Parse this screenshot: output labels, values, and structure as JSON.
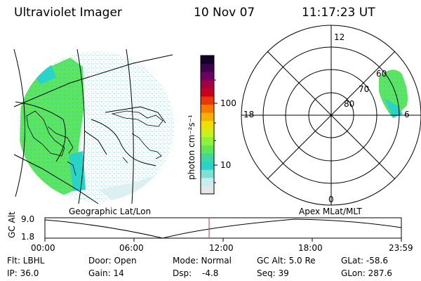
{
  "header": {
    "instrument": "Ultraviolet Imager",
    "date": "10 Nov 07",
    "time": "11:17:23 UT"
  },
  "colorbar": {
    "unit_label": "photon cm⁻²s⁻¹",
    "ticks": [
      {
        "label": "100",
        "value": 100
      },
      {
        "label": "10",
        "value": 10
      }
    ],
    "scale": "log",
    "colors": [
      "#e6e6e6",
      "#c8ecf0",
      "#7fe0d8",
      "#29d3c8",
      "#3fd6a0",
      "#5ee65a",
      "#8cf23a",
      "#c8f01c",
      "#f0e000",
      "#f8b000",
      "#f87800",
      "#e63a00",
      "#c8001e",
      "#a00046",
      "#700060",
      "#400050",
      "#15002a"
    ]
  },
  "left_map": {
    "label": "Geographic Lat/Lon"
  },
  "polar_plot": {
    "label": "Apex MLat/MLT",
    "mlt_labels": {
      "top": "12",
      "bottom": "0",
      "left": "18",
      "right": "6"
    },
    "lat_labels": [
      "60",
      "70",
      "80"
    ]
  },
  "altitude_plot": {
    "y_label": "GC Alt",
    "y_ticks": [
      "9.0",
      "1.8"
    ],
    "x_ticks": [
      "00:00",
      "06:00",
      "12:00",
      "18:00",
      "23:59"
    ],
    "current_time_marker": "11:17"
  },
  "status": {
    "row1": {
      "filter": "Flt: LBHL",
      "door": "Door: Open",
      "mode": "Mode: Normal",
      "gc_alt": "GC Alt: 5.0 Re",
      "glat": "GLat: -58.6"
    },
    "row2": {
      "ip": "IP: 36.0",
      "gain": "Gain: 14",
      "dsp_label": "Dsp:",
      "dsp_value": "-4.8",
      "seq": "Seq: 39",
      "glon": "GLon: 287.6"
    }
  },
  "colors": {
    "aurora_green": "#5ee65a",
    "aurora_cyan": "#29d3c8",
    "speckle": "#c8ecf0",
    "marker": "#c0304a"
  }
}
